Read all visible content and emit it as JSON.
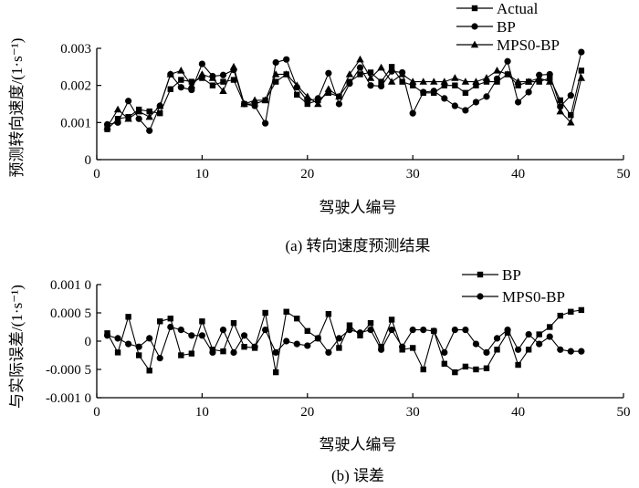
{
  "chart_data": [
    {
      "id": "a",
      "type": "line",
      "title": "(a) 转向速度预测结果",
      "xlabel": "驾驶人编号",
      "ylabel": "预测转向速度/(1·s⁻¹)",
      "xlim": [
        0,
        50
      ],
      "ylim": [
        0,
        0.003
      ],
      "xticks": [
        "0",
        "10",
        "20",
        "30",
        "40",
        "50"
      ],
      "yticks": [
        "0",
        "0.001",
        "0.002",
        "0.003"
      ],
      "legend": [
        "Actual",
        "BP",
        "MPS0-BP"
      ],
      "x": [
        1,
        2,
        3,
        4,
        5,
        6,
        7,
        8,
        9,
        10,
        11,
        12,
        13,
        14,
        15,
        16,
        17,
        18,
        19,
        20,
        21,
        22,
        23,
        24,
        25,
        26,
        27,
        28,
        29,
        30,
        31,
        32,
        33,
        34,
        35,
        36,
        37,
        38,
        39,
        40,
        41,
        42,
        43,
        44,
        45,
        46
      ],
      "series": [
        {
          "name": "Actual",
          "marker": "square",
          "values": [
            0.00082,
            0.0011,
            0.00115,
            0.00135,
            0.0013,
            0.00125,
            0.0019,
            0.00215,
            0.0021,
            0.0022,
            0.002,
            0.0021,
            0.00215,
            0.0015,
            0.0015,
            0.0016,
            0.0021,
            0.0023,
            0.00175,
            0.0015,
            0.0016,
            0.0018,
            0.0017,
            0.0021,
            0.0023,
            0.00235,
            0.0021,
            0.0025,
            0.0021,
            0.002,
            0.0018,
            0.0018,
            0.002,
            0.002,
            0.0018,
            0.002,
            0.0021,
            0.0021,
            0.0023,
            0.002,
            0.0021,
            0.0021,
            0.0022,
            0.0016,
            0.0012,
            0.0024
          ]
        },
        {
          "name": "BP",
          "marker": "circle",
          "values": [
            0.00095,
            0.001,
            0.00158,
            0.0011,
            0.00078,
            0.00145,
            0.0023,
            0.00195,
            0.00188,
            0.00258,
            0.00225,
            0.00228,
            0.00242,
            0.0015,
            0.00145,
            0.00098,
            0.00262,
            0.0027,
            0.00195,
            0.00158,
            0.00165,
            0.00233,
            0.0015,
            0.00205,
            0.00248,
            0.002,
            0.00198,
            0.00238,
            0.00235,
            0.00125,
            0.00182,
            0.00185,
            0.00165,
            0.00145,
            0.00133,
            0.00155,
            0.0017,
            0.00218,
            0.00265,
            0.00155,
            0.00182,
            0.00228,
            0.0023,
            0.00143,
            0.00173,
            0.0029
          ]
        },
        {
          "name": "MPS0-BP",
          "marker": "triangle",
          "values": [
            0.00088,
            0.00135,
            0.0011,
            0.0013,
            0.00115,
            0.00145,
            0.0023,
            0.0024,
            0.002,
            0.0023,
            0.0022,
            0.00185,
            0.0025,
            0.0015,
            0.0016,
            0.0016,
            0.0023,
            0.0023,
            0.002,
            0.0017,
            0.0015,
            0.0019,
            0.0017,
            0.0023,
            0.0027,
            0.0022,
            0.00248,
            0.0021,
            0.0023,
            0.0021,
            0.0021,
            0.0021,
            0.0021,
            0.0022,
            0.0021,
            0.0021,
            0.0022,
            0.0024,
            0.0023,
            0.0021,
            0.0021,
            0.0022,
            0.0021,
            0.0013,
            0.001,
            0.0022
          ]
        }
      ]
    },
    {
      "id": "b",
      "type": "line",
      "title": "(b) 误差",
      "xlabel": "驾驶人编号",
      "ylabel": "与实际误差/(1·s⁻¹)",
      "xlim": [
        0,
        50
      ],
      "ylim": [
        -0.001,
        0.001
      ],
      "xticks": [
        "0",
        "10",
        "20",
        "30",
        "40",
        "50"
      ],
      "yticks": [
        "0.001 0",
        "0.000 5",
        "0",
        "-0.000 5",
        "-0.001 0"
      ],
      "legend": [
        "BP",
        "MPS0-BP"
      ],
      "x": [
        1,
        2,
        3,
        4,
        5,
        6,
        7,
        8,
        9,
        10,
        11,
        12,
        13,
        14,
        15,
        16,
        17,
        18,
        19,
        20,
        21,
        22,
        23,
        24,
        25,
        26,
        27,
        28,
        29,
        30,
        31,
        32,
        33,
        34,
        35,
        36,
        37,
        38,
        39,
        40,
        41,
        42,
        43,
        44,
        45,
        46
      ],
      "series": [
        {
          "name": "BP",
          "marker": "square",
          "values": [
            0.00014,
            -0.0002,
            0.00043,
            -0.00025,
            -0.00052,
            0.00035,
            0.0004,
            -0.00025,
            -0.00022,
            0.00035,
            -0.00015,
            -0.00018,
            0.00032,
            -0.0001,
            -0.00012,
            0.0005,
            -0.00055,
            0.00052,
            0.0004,
            0.00018,
            5e-05,
            0.00048,
            -0.00012,
            0.00028,
            0.0001,
            0.00032,
            -0.0001,
            0.00038,
            -0.00015,
            -0.00012,
            -0.0005,
            0.00018,
            -0.0004,
            -0.00055,
            -0.00045,
            -0.0005,
            -0.00048,
            -0.00015,
            0.00015,
            -0.00042,
            -0.00015,
            0.00012,
            0.00025,
            0.00045,
            0.00052,
            0.00055
          ]
        },
        {
          "name": "MPS0-BP",
          "marker": "circle",
          "values": [
            0.0001,
            5e-05,
            -5e-05,
            -0.0001,
            5e-05,
            -0.0003,
            0.00025,
            0.0002,
            0.0001,
            0.0001,
            -0.0002,
            0.0002,
            -0.0002,
            0.0001,
            -0.0001,
            0.0002,
            -0.0002,
            0.0,
            -5e-05,
            -8e-05,
            5e-05,
            -0.0002,
            5e-05,
            0.0002,
            0.00015,
            0.0002,
            -0.00015,
            0.0002,
            -0.0001,
            0.0002,
            0.0002,
            0.00018,
            -0.0002,
            0.0002,
            0.0002,
            -5e-05,
            -0.0002,
            5e-05,
            0.0002,
            -0.00015,
            0.00012,
            -5e-05,
            8e-05,
            -0.00015,
            -0.00018,
            -0.00018
          ]
        }
      ]
    }
  ]
}
